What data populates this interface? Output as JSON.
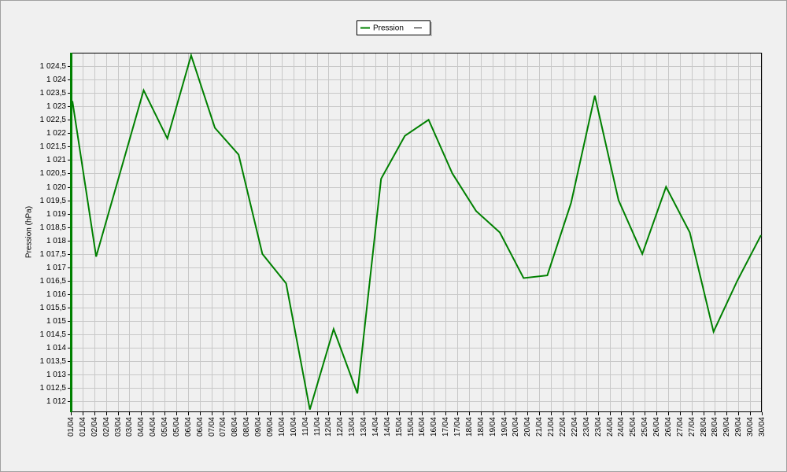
{
  "chart_data": {
    "type": "line",
    "legend_position": "top",
    "y_label": "Pression (hPa)",
    "categories": [
      "01/04",
      "02/04",
      "03/04",
      "04/04",
      "05/04",
      "06/04",
      "07/04",
      "08/04",
      "09/04",
      "10/04",
      "11/04",
      "12/04",
      "13/04",
      "14/04",
      "15/04",
      "16/04",
      "17/04",
      "18/04",
      "19/04",
      "20/04",
      "21/04",
      "22/04",
      "23/04",
      "24/04",
      "25/04",
      "26/04",
      "27/04",
      "28/04",
      "29/04",
      "30/04"
    ],
    "series": [
      {
        "name": "Pression",
        "color": "#008000",
        "values": [
          1023.2,
          1017.4,
          1020.5,
          1023.6,
          1021.8,
          1024.9,
          1022.2,
          1021.2,
          1017.5,
          1016.4,
          1011.7,
          1014.7,
          1012.3,
          1020.3,
          1021.9,
          1022.5,
          1020.5,
          1019.1,
          1018.3,
          1016.6,
          1016.7,
          1019.4,
          1023.4,
          1019.5,
          1017.5,
          1020.0,
          1018.3,
          1014.6,
          1016.5,
          1018.2
        ]
      }
    ],
    "ylim": [
      1011.6,
      1025
    ],
    "yticks": [
      {
        "value": 1012,
        "label": "1 012"
      },
      {
        "value": 1012.5,
        "label": "1 012,5"
      },
      {
        "value": 1013,
        "label": "1 013"
      },
      {
        "value": 1013.5,
        "label": "1 013,5"
      },
      {
        "value": 1014,
        "label": "1 014"
      },
      {
        "value": 1014.5,
        "label": "1 014,5"
      },
      {
        "value": 1015,
        "label": "1 015"
      },
      {
        "value": 1015.5,
        "label": "1 015,5"
      },
      {
        "value": 1016,
        "label": "1 016"
      },
      {
        "value": 1016.5,
        "label": "1 016,5"
      },
      {
        "value": 1017,
        "label": "1 017"
      },
      {
        "value": 1017.5,
        "label": "1 017,5"
      },
      {
        "value": 1018,
        "label": "1 018"
      },
      {
        "value": 1018.5,
        "label": "1 018,5"
      },
      {
        "value": 1019,
        "label": "1 019"
      },
      {
        "value": 1019.5,
        "label": "1 019,5"
      },
      {
        "value": 1020,
        "label": "1 020"
      },
      {
        "value": 1020.5,
        "label": "1 020,5"
      },
      {
        "value": 1021,
        "label": "1 021"
      },
      {
        "value": 1021.5,
        "label": "1 021,5"
      },
      {
        "value": 1022,
        "label": "1 022"
      },
      {
        "value": 1022.5,
        "label": "1 022,5"
      },
      {
        "value": 1023,
        "label": "1 023"
      },
      {
        "value": 1023.5,
        "label": "1 023,5"
      },
      {
        "value": 1024,
        "label": "1 024"
      },
      {
        "value": 1024.5,
        "label": "1 024,5"
      }
    ],
    "grid": true
  }
}
